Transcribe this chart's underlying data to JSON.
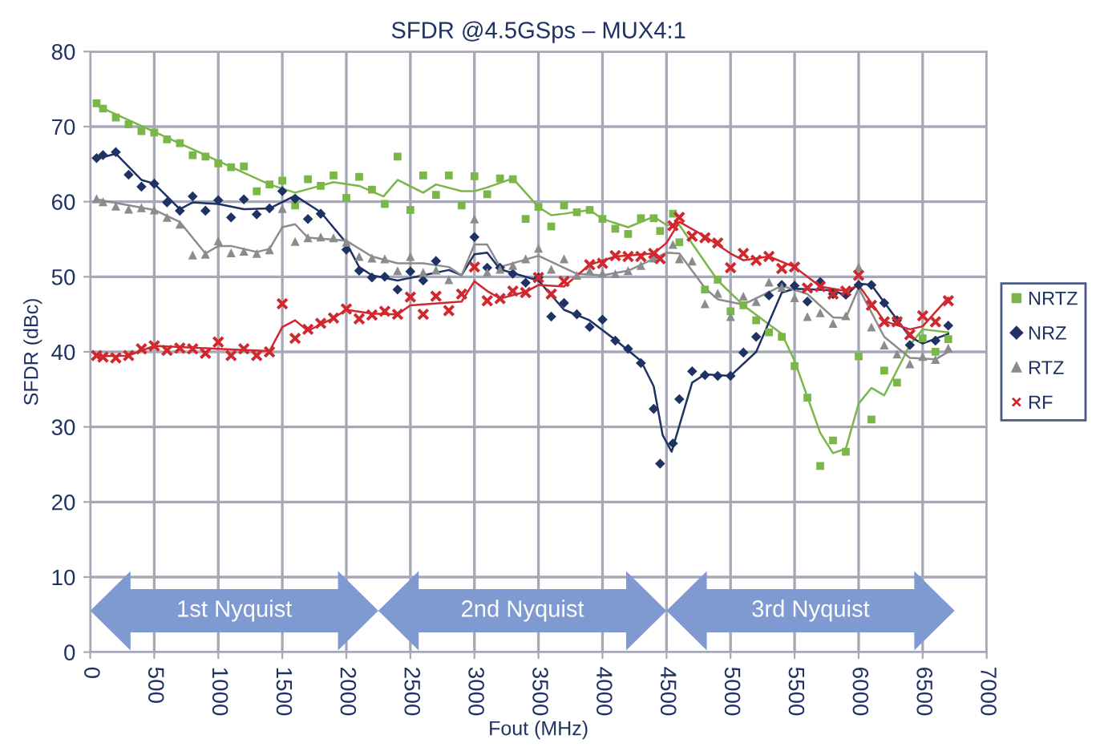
{
  "chart_data": {
    "type": "scatter",
    "title": "SFDR @4.5GSps – MUX4:1",
    "xlabel": "Fout (MHz)",
    "ylabel": "SFDR (dBc)",
    "xlim": [
      0,
      7000
    ],
    "xticks": [
      0,
      500,
      1000,
      1500,
      2000,
      2500,
      3000,
      3500,
      4000,
      4500,
      5000,
      5500,
      6000,
      6500,
      7000
    ],
    "ylim": [
      0,
      80
    ],
    "yticks": [
      0,
      10,
      20,
      30,
      40,
      50,
      60,
      70,
      80
    ],
    "grid": true,
    "legend": "right",
    "annotations": [
      "1st Nyquist",
      "2nd Nyquist",
      "3rd Nyquist"
    ],
    "series": [
      {
        "name": "NRTZ",
        "marker": "square",
        "color": "#7ab648",
        "x": [
          50,
          100,
          200,
          300,
          400,
          500,
          600,
          700,
          800,
          900,
          1000,
          1100,
          1200,
          1300,
          1400,
          1500,
          1600,
          1700,
          1800,
          1900,
          2000,
          2100,
          2200,
          2300,
          2400,
          2500,
          2600,
          2700,
          2800,
          2900,
          3000,
          3100,
          3200,
          3300,
          3400,
          3500,
          3600,
          3700,
          3800,
          3900,
          4000,
          4100,
          4200,
          4300,
          4400,
          4450,
          4550,
          4600,
          4800,
          4900,
          5000,
          5100,
          5200,
          5300,
          5400,
          5500,
          5600,
          5700,
          5800,
          5900,
          6000,
          6100,
          6200,
          6300,
          6500,
          6600,
          6700
        ],
        "values": [
          73.1,
          72.4,
          71.2,
          70.3,
          69.4,
          69.2,
          68.3,
          67.8,
          66.2,
          66.0,
          65.1,
          64.6,
          64.7,
          61.4,
          62.3,
          62.8,
          59.5,
          63.0,
          62.1,
          63.5,
          60.5,
          63.3,
          61.6,
          59.7,
          66.0,
          58.9,
          63.5,
          60.9,
          63.5,
          59.5,
          63.4,
          61.0,
          63.1,
          63.0,
          57.7,
          59.3,
          56.7,
          59.5,
          58.6,
          58.9,
          57.7,
          56.4,
          55.7,
          57.8,
          57.8,
          56.1,
          58.4,
          54.6,
          48.3,
          49.6,
          45.4,
          46.2,
          44.2,
          42.6,
          42.0,
          38.1,
          33.9,
          24.8,
          28.2,
          26.7,
          39.4,
          31.0,
          37.5,
          35.9,
          41.8,
          40.0,
          41.7
        ]
      },
      {
        "name": "NRZ",
        "marker": "diamond",
        "color": "#1f3264",
        "x": [
          50,
          100,
          200,
          300,
          400,
          500,
          600,
          700,
          800,
          900,
          1000,
          1100,
          1200,
          1300,
          1400,
          1500,
          1600,
          1700,
          1800,
          2000,
          2100,
          2200,
          2300,
          2400,
          2500,
          2600,
          2700,
          3000,
          3100,
          3200,
          3300,
          3400,
          3500,
          3600,
          3700,
          3800,
          3900,
          4000,
          4100,
          4200,
          4300,
          4400,
          4450,
          4550,
          4600,
          4700,
          4800,
          4900,
          5000,
          5100,
          5200,
          5300,
          5400,
          5500,
          5600,
          5700,
          5800,
          5900,
          6000,
          6100,
          6200,
          6300,
          6400,
          6600,
          6700
        ],
        "values": [
          65.8,
          66.2,
          66.6,
          63.6,
          62.0,
          62.4,
          59.9,
          58.8,
          60.7,
          58.8,
          60.2,
          57.9,
          60.3,
          58.3,
          59.1,
          61.4,
          60.4,
          57.7,
          58.4,
          53.6,
          50.8,
          49.9,
          50.0,
          48.3,
          50.7,
          49.5,
          52.1,
          55.3,
          51.2,
          51.2,
          50.4,
          49.2,
          49.9,
          44.7,
          46.5,
          45.0,
          43.3,
          44.3,
          41.5,
          40.4,
          38.5,
          32.4,
          25.1,
          27.8,
          33.7,
          37.4,
          36.9,
          36.8,
          36.8,
          39.9,
          42.0,
          47.5,
          48.9,
          48.8,
          46.7,
          49.3,
          47.7,
          47.6,
          48.9,
          48.9,
          46.5,
          44.2,
          40.9,
          41.5,
          43.5
        ]
      },
      {
        "name": "RTZ",
        "marker": "triangle",
        "color": "#8c8c8c",
        "x": [
          50,
          100,
          200,
          300,
          400,
          500,
          600,
          700,
          800,
          900,
          1000,
          1100,
          1200,
          1300,
          1400,
          1500,
          1600,
          1700,
          1800,
          1900,
          2000,
          2100,
          2200,
          2300,
          2400,
          2500,
          2600,
          2700,
          2800,
          3000,
          3100,
          3200,
          3300,
          3400,
          3500,
          3600,
          3700,
          3800,
          3900,
          4000,
          4100,
          4200,
          4300,
          4400,
          4550,
          4600,
          4700,
          4800,
          4900,
          5000,
          5100,
          5200,
          5300,
          5400,
          5500,
          5600,
          5700,
          5800,
          5900,
          6000,
          6100,
          6200,
          6300,
          6400,
          6500,
          6600,
          6700
        ],
        "values": [
          60.4,
          60.0,
          59.4,
          59.0,
          59.2,
          58.9,
          57.9,
          57.0,
          52.9,
          53.0,
          54.8,
          53.2,
          53.4,
          53.1,
          53.6,
          59.1,
          54.7,
          55.2,
          55.3,
          55.2,
          54.6,
          52.7,
          52.5,
          52.4,
          50.8,
          52.7,
          50.6,
          50.9,
          49.6,
          57.7,
          50.6,
          51.0,
          51.5,
          52.4,
          53.8,
          51.0,
          52.4,
          50.2,
          50.8,
          50.5,
          50.4,
          50.8,
          51.5,
          52.5,
          54.3,
          52.4,
          52.1,
          46.4,
          47.8,
          44.7,
          47.4,
          46.7,
          49.3,
          48.6,
          47.2,
          44.7,
          45.2,
          43.8,
          44.8,
          51.3,
          43.3,
          40.9,
          39.7,
          38.4,
          39.4,
          39.0,
          40.5
        ]
      },
      {
        "name": "RF",
        "marker": "cross",
        "color": "#d0282e",
        "x": [
          50,
          100,
          200,
          300,
          400,
          500,
          600,
          700,
          800,
          900,
          1000,
          1100,
          1200,
          1300,
          1400,
          1500,
          1600,
          1700,
          1800,
          1900,
          2000,
          2100,
          2200,
          2300,
          2400,
          2500,
          2600,
          2700,
          2800,
          2900,
          3000,
          3100,
          3200,
          3300,
          3400,
          3500,
          3600,
          3700,
          3900,
          4000,
          4100,
          4200,
          4300,
          4400,
          4450,
          4550,
          4600,
          4700,
          4800,
          4900,
          5000,
          5100,
          5200,
          5300,
          5400,
          5500,
          5600,
          5700,
          5800,
          5900,
          6000,
          6100,
          6200,
          6300,
          6400,
          6500,
          6600,
          6700
        ],
        "values": [
          39.5,
          39.3,
          39.2,
          39.5,
          40.4,
          40.8,
          40.2,
          40.5,
          40.4,
          39.8,
          41.3,
          39.5,
          40.4,
          39.5,
          40.0,
          46.4,
          41.8,
          43.0,
          43.8,
          44.5,
          45.7,
          44.4,
          44.9,
          45.4,
          45.0,
          47.3,
          45.0,
          47.4,
          45.5,
          47.7,
          51.3,
          46.8,
          47.1,
          48.1,
          47.9,
          49.9,
          47.7,
          49.4,
          51.6,
          51.8,
          52.8,
          52.7,
          52.7,
          53.1,
          52.4,
          56.8,
          57.9,
          55.4,
          55.2,
          54.5,
          51.2,
          53.1,
          52.2,
          52.7,
          51.1,
          51.3,
          48.5,
          48.7,
          47.7,
          48.1,
          50.2,
          46.2,
          44.0,
          44.0,
          42.3,
          44.8,
          44.0,
          46.8
        ]
      },
      {
        "type": "line",
        "marker": "none",
        "color": "#7ab648",
        "x": [
          50,
          400,
          900,
          1400,
          1600,
          1900,
          2100,
          2290,
          2400,
          2600,
          2700,
          2900,
          3000,
          3100,
          3300,
          3500,
          3600,
          3700,
          3900,
          4000,
          4200,
          4400,
          4500,
          4600,
          4900,
          5100,
          5400,
          5500,
          5700,
          5800,
          5900,
          6000,
          6100,
          6200,
          6400,
          6500,
          6700
        ],
        "values": [
          72.8,
          70.1,
          66.2,
          62.3,
          61.2,
          62.6,
          62.1,
          60.7,
          62.9,
          61.2,
          62.3,
          61.4,
          61.4,
          61.9,
          63.1,
          59.3,
          58.2,
          58.4,
          58.9,
          57.7,
          56.6,
          58.0,
          56.9,
          56.9,
          49.5,
          46.2,
          42.4,
          38.8,
          29.2,
          26.5,
          27.1,
          33.1,
          35.2,
          34.2,
          40.9,
          43.0,
          42.6
        ]
      },
      {
        "type": "line",
        "marker": "none",
        "color": "#1f3264",
        "x": [
          50,
          200,
          400,
          500,
          700,
          800,
          1000,
          1200,
          1400,
          1600,
          1800,
          2000,
          2100,
          2200,
          2400,
          2600,
          2800,
          2900,
          3000,
          3100,
          3200,
          3500,
          3700,
          3900,
          4100,
          4300,
          4400,
          4470,
          4540,
          4700,
          4800,
          5000,
          5200,
          5400,
          5500,
          5800,
          5900,
          6000,
          6100,
          6200,
          6400,
          6500,
          6700
        ],
        "values": [
          65.7,
          66.4,
          62.9,
          62.4,
          59.0,
          59.9,
          59.7,
          59.0,
          59.1,
          60.8,
          58.6,
          54.5,
          51.3,
          50.2,
          49.5,
          50.2,
          50.9,
          50.2,
          53.0,
          53.2,
          51.0,
          49.5,
          45.6,
          44.2,
          41.6,
          38.8,
          35.4,
          28.9,
          26.7,
          35.9,
          37.0,
          36.8,
          40.0,
          47.9,
          48.4,
          48.2,
          47.5,
          49.1,
          48.9,
          46.6,
          42.0,
          41.1,
          42.4
        ]
      },
      {
        "type": "line",
        "marker": "none",
        "color": "#8c8c8c",
        "x": [
          50,
          500,
          700,
          900,
          1000,
          1100,
          1300,
          1400,
          1500,
          1600,
          1700,
          2000,
          2200,
          2400,
          2600,
          2800,
          2900,
          3000,
          3100,
          3200,
          3500,
          3800,
          4000,
          4200,
          4400,
          4500,
          4600,
          4800,
          4900,
          5100,
          5400,
          5600,
          5800,
          5900,
          6000,
          6200,
          6400,
          6600,
          6700
        ],
        "values": [
          60.3,
          58.9,
          57.3,
          53.1,
          54.1,
          54.1,
          53.3,
          53.7,
          56.6,
          57.0,
          55.2,
          54.8,
          52.7,
          51.8,
          51.8,
          51.3,
          50.2,
          54.3,
          54.3,
          51.3,
          52.8,
          50.4,
          50.2,
          50.8,
          52.4,
          53.2,
          53.1,
          48.5,
          47.0,
          46.3,
          48.8,
          47.7,
          44.6,
          44.5,
          48.5,
          42.0,
          39.2,
          39.0,
          40.0
        ]
      },
      {
        "type": "line",
        "marker": "none",
        "color": "#d0282e",
        "x": [
          50,
          300,
          500,
          1000,
          1400,
          1500,
          1600,
          1700,
          1900,
          2000,
          2200,
          2400,
          2500,
          2900,
          3000,
          3100,
          3200,
          3400,
          3500,
          3700,
          3900,
          4100,
          4400,
          4500,
          4600,
          4800,
          5000,
          5100,
          5300,
          5500,
          5700,
          5900,
          6000,
          6200,
          6400,
          6500,
          6700
        ],
        "values": [
          39.4,
          39.5,
          40.8,
          40.4,
          40.1,
          43.3,
          44.2,
          42.8,
          44.5,
          45.6,
          45.1,
          45.0,
          46.2,
          46.7,
          49.4,
          48.1,
          47.1,
          48.0,
          48.9,
          48.7,
          51.6,
          52.7,
          53.1,
          54.5,
          57.3,
          55.4,
          53.1,
          52.2,
          52.7,
          51.3,
          48.7,
          48.1,
          48.9,
          44.1,
          43.0,
          43.4,
          47.2
        ]
      }
    ]
  }
}
